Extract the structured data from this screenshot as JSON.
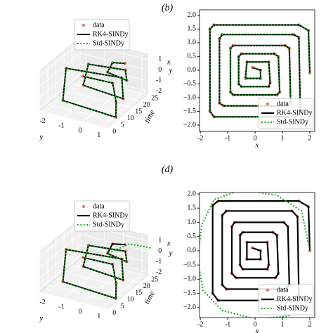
{
  "panel_labels": [
    "(b)",
    "(d)"
  ],
  "chart_data": [
    {
      "type": "line3d",
      "xlabel": "y",
      "ylabel": "time",
      "zlabel": "x",
      "xlim": [
        -2.3,
        1.3
      ],
      "ylim": [
        0,
        25
      ],
      "zlim": [
        -2.3,
        1.5
      ],
      "xticks": [
        -2,
        -1,
        0,
        1
      ],
      "yticks": [
        0,
        5,
        10,
        15,
        20,
        25
      ],
      "zticks": [
        -2,
        -1,
        0,
        1
      ],
      "legend": "upper right",
      "series": [
        {
          "name": "data",
          "color": "#e8564f",
          "linestyle": "none",
          "x": [
            0.0,
            1.5,
            1.6,
            1.5,
            -1.5,
            -1.5,
            1.3,
            1.2,
            -1.1,
            -1.0,
            0.8,
            0.7,
            -0.5,
            -0.4,
            0.1
          ],
          "y": [
            0,
            1,
            2,
            3,
            5,
            7,
            9,
            11,
            13,
            15,
            17,
            19,
            21,
            23,
            25
          ],
          "values": [
            2.0,
            1.9,
            0,
            -1.6,
            -1.6,
            1.2,
            1.3,
            -1.0,
            -1.0,
            0.8,
            0.8,
            -0.5,
            -0.5,
            0.2,
            0.1
          ]
        },
        {
          "name": "RK4-SINDy",
          "color": "#000000",
          "linestyle": "solid",
          "x": [
            0.0,
            1.5,
            1.6,
            1.5,
            -1.5,
            -1.5,
            1.3,
            1.2,
            -1.1,
            -1.0,
            0.8,
            0.7,
            -0.5,
            -0.4,
            0.1
          ],
          "y": [
            0,
            1,
            2,
            3,
            5,
            7,
            9,
            11,
            13,
            15,
            17,
            19,
            21,
            23,
            25
          ],
          "values": [
            2.0,
            1.9,
            0,
            -1.6,
            -1.6,
            1.2,
            1.3,
            -1.0,
            -1.0,
            0.8,
            0.8,
            -0.5,
            -0.5,
            0.2,
            0.1
          ]
        },
        {
          "name": "Std-SINDy",
          "color": "#12a012",
          "linestyle": "dotted",
          "x": [
            0.0,
            1.5,
            1.6,
            1.5,
            -1.5,
            -1.5,
            1.3,
            1.2,
            -1.1,
            -1.0,
            0.8,
            0.7,
            -0.5,
            -0.4,
            0.1
          ],
          "y": [
            0,
            1,
            2,
            3,
            5,
            7,
            9,
            11,
            13,
            15,
            17,
            19,
            21,
            23,
            25
          ],
          "values": [
            2.0,
            1.9,
            0,
            -1.6,
            -1.6,
            1.2,
            1.3,
            -1.0,
            -1.0,
            0.8,
            0.8,
            -0.5,
            -0.5,
            0.2,
            0.1
          ]
        }
      ]
    },
    {
      "type": "line",
      "xlabel": "x",
      "ylabel": "y",
      "xlim": [
        -2.03,
        2.18
      ],
      "ylim": [
        -2.23,
        2.2
      ],
      "xticks": [
        -2,
        -1,
        0,
        1,
        2
      ],
      "yticks": [
        {
          "value": 2,
          "label": "2.0"
        },
        {
          "value": 1.5,
          "label": "1.5"
        },
        {
          "value": 1,
          "label": "1.0"
        },
        {
          "value": 0.5,
          "label": "0.5"
        },
        {
          "value": 0,
          "label": "0.0"
        },
        {
          "value": -0.5,
          "label": "−0.5"
        },
        {
          "value": -1,
          "label": "−1.0"
        },
        {
          "value": -1.5,
          "label": "−1.5"
        },
        {
          "value": -2,
          "label": "−2.0"
        }
      ],
      "legend": "lower right",
      "series": [
        {
          "name": "data",
          "color": "#e8564f",
          "linestyle": "none",
          "x": [
            2.0,
            1.95,
            1.6,
            -1.5,
            -1.65,
            -1.65,
            -1.5,
            1.5,
            1.65,
            1.6,
            1.4,
            -1.2,
            -1.3,
            -1.3,
            -1.15,
            1.2,
            1.3,
            1.25,
            1.1,
            -0.8,
            -0.9,
            -0.9,
            -0.8,
            0.8,
            0.9,
            0.85,
            0.7,
            -0.5,
            -0.6,
            -0.6,
            -0.5,
            0.5,
            0.55,
            0.5,
            -0.3,
            -0.35,
            0.2,
            0.2,
            -0.1
          ],
          "values": [
            -0.1,
            1.45,
            1.65,
            1.65,
            1.5,
            -1.5,
            -1.7,
            -1.7,
            -1.5,
            1.2,
            1.3,
            1.3,
            1.15,
            -1.2,
            -1.3,
            -1.3,
            -1.15,
            0.8,
            0.9,
            0.9,
            0.8,
            -0.8,
            -0.9,
            -0.9,
            -0.8,
            0.5,
            0.6,
            0.6,
            0.5,
            -0.5,
            -0.6,
            -0.6,
            -0.45,
            0.3,
            0.3,
            -0.3,
            -0.3,
            0,
            0.1
          ]
        },
        {
          "name": "RK4-SINDy",
          "color": "#000000",
          "linestyle": "solid",
          "x": [
            2.0,
            1.95,
            1.6,
            -1.5,
            -1.65,
            -1.65,
            -1.5,
            1.5,
            1.65,
            1.6,
            1.4,
            -1.2,
            -1.3,
            -1.3,
            -1.15,
            1.2,
            1.3,
            1.25,
            1.1,
            -0.8,
            -0.9,
            -0.9,
            -0.8,
            0.8,
            0.9,
            0.85,
            0.7,
            -0.5,
            -0.6,
            -0.6,
            -0.5,
            0.5,
            0.55,
            0.5,
            -0.3,
            -0.35,
            0.2,
            0.2,
            -0.1
          ],
          "values": [
            -0.1,
            1.45,
            1.65,
            1.65,
            1.5,
            -1.5,
            -1.7,
            -1.7,
            -1.5,
            1.2,
            1.3,
            1.3,
            1.15,
            -1.2,
            -1.3,
            -1.3,
            -1.15,
            0.8,
            0.9,
            0.9,
            0.8,
            -0.8,
            -0.9,
            -0.9,
            -0.8,
            0.5,
            0.6,
            0.6,
            0.5,
            -0.5,
            -0.6,
            -0.6,
            -0.45,
            0.3,
            0.3,
            -0.3,
            -0.3,
            0,
            0.1
          ]
        },
        {
          "name": "Std-SINDy",
          "color": "#12a012",
          "linestyle": "dotted",
          "x": [
            2.0,
            1.95,
            1.6,
            -1.5,
            -1.65,
            -1.65,
            -1.5,
            1.5,
            1.65,
            1.6,
            1.4,
            -1.2,
            -1.3,
            -1.3,
            -1.15,
            1.2,
            1.3,
            1.25,
            1.1,
            -0.8,
            -0.9,
            -0.9,
            -0.8,
            0.8,
            0.9,
            0.85,
            0.7,
            -0.5,
            -0.6,
            -0.6,
            -0.5,
            0.5,
            0.55,
            0.5,
            -0.3,
            -0.35,
            0.2,
            0.2,
            -0.1
          ],
          "values": [
            -0.1,
            1.45,
            1.65,
            1.65,
            1.5,
            -1.5,
            -1.7,
            -1.7,
            -1.5,
            1.2,
            1.3,
            1.3,
            1.15,
            -1.2,
            -1.3,
            -1.3,
            -1.15,
            0.8,
            0.9,
            0.9,
            0.8,
            -0.8,
            -0.9,
            -0.9,
            -0.8,
            0.5,
            0.6,
            0.6,
            0.5,
            -0.5,
            -0.6,
            -0.6,
            -0.45,
            0.3,
            0.3,
            -0.3,
            -0.3,
            0,
            0.1
          ]
        }
      ]
    },
    {
      "type": "line3d",
      "xlabel": "y",
      "ylabel": "time",
      "zlabel": "x",
      "xlim": [
        -2.3,
        1.3
      ],
      "ylim": [
        0,
        25
      ],
      "zlim": [
        -2.3,
        1.5
      ],
      "xticks": [
        -2,
        -1,
        0,
        1
      ],
      "yticks": [
        0,
        5,
        10,
        15,
        20,
        25
      ],
      "zticks": [
        -2,
        -1,
        0,
        1
      ],
      "legend": "upper right",
      "series": [
        {
          "name": "data",
          "color": "#e8564f",
          "linestyle": "none",
          "x": [
            0.0,
            1.5,
            1.6,
            1.5,
            -1.5,
            -1.5,
            1.3,
            1.2,
            -1.1,
            -1.0,
            0.8,
            0.7,
            -0.5,
            -0.4,
            0.1
          ],
          "y": [
            0,
            1,
            2,
            3,
            5,
            7,
            9,
            11,
            13,
            15,
            17,
            19,
            21,
            23,
            25
          ],
          "values": [
            2.0,
            1.9,
            0,
            -1.6,
            -1.6,
            1.2,
            1.3,
            -1.0,
            -1.0,
            0.8,
            0.8,
            -0.5,
            -0.5,
            0.2,
            0.1
          ]
        },
        {
          "name": "RK4-SINDy",
          "color": "#000000",
          "linestyle": "solid",
          "x": [
            0.0,
            1.5,
            1.6,
            1.5,
            -1.5,
            -1.5,
            1.3,
            1.2,
            -1.1,
            -1.0,
            0.8,
            0.7,
            -0.5,
            -0.4,
            0.1
          ],
          "y": [
            0,
            1,
            2,
            3,
            5,
            7,
            9,
            11,
            13,
            15,
            17,
            19,
            21,
            23,
            25
          ],
          "values": [
            2.0,
            1.9,
            0,
            -1.6,
            -1.6,
            1.2,
            1.3,
            -1.0,
            -1.0,
            0.8,
            0.8,
            -0.5,
            -0.5,
            0.2,
            0.1
          ]
        },
        {
          "name": "Std-SINDy",
          "color": "#12a012",
          "linestyle": "dotted",
          "x": [
            0.0,
            1.5,
            1.6,
            1.5,
            -1.5,
            -1.5,
            1.3,
            1.2,
            -1.1,
            -1.0,
            0.8,
            0.7,
            -0.5,
            0.5,
            1.5
          ],
          "y": [
            0,
            1,
            2,
            3,
            5,
            7,
            9,
            11,
            13,
            15,
            17,
            19,
            21,
            23,
            25
          ],
          "values": [
            2.0,
            1.9,
            0,
            -1.6,
            -1.6,
            1.2,
            1.3,
            -1.0,
            -1.0,
            0.8,
            0.8,
            -0.5,
            -0.5,
            0.6,
            0.4
          ]
        }
      ]
    },
    {
      "type": "line",
      "xlabel": "x",
      "ylabel": "y",
      "xlim": [
        -2.03,
        2.18
      ],
      "ylim": [
        -2.35,
        2.05
      ],
      "xticks": [
        -2,
        -1,
        0,
        1,
        2
      ],
      "yticks": [
        {
          "value": 2,
          "label": "2.0"
        },
        {
          "value": 1.5,
          "label": "1.5"
        },
        {
          "value": 1,
          "label": "1.0"
        },
        {
          "value": 0.5,
          "label": "0.5"
        },
        {
          "value": 0,
          "label": "0.0"
        },
        {
          "value": -0.5,
          "label": "−0.5"
        },
        {
          "value": -1,
          "label": "−1.0"
        },
        {
          "value": -1.5,
          "label": "−1.5"
        },
        {
          "value": -2,
          "label": "−2.0"
        }
      ],
      "legend": "lower right",
      "series": [
        {
          "name": "data",
          "color": "#e8564f",
          "linestyle": "none",
          "x": [
            2.0,
            1.95,
            1.6,
            -1.35,
            -1.55,
            -1.55,
            -1.35,
            1.4,
            1.6,
            1.55,
            1.35,
            -1.05,
            -1.2,
            -1.2,
            -1.05,
            1.1,
            1.25,
            1.2,
            1.05,
            -0.75,
            -0.85,
            -0.85,
            -0.7,
            0.75,
            0.85,
            0.8,
            0.65,
            -0.45,
            -0.55,
            -0.55,
            -0.45,
            0.45,
            0.5,
            0.45,
            -0.3,
            -0.3,
            0.2,
            0.2,
            -0.1
          ],
          "values": [
            0.0,
            1.55,
            1.75,
            1.75,
            1.6,
            -1.5,
            -1.75,
            -1.75,
            -1.55,
            1.2,
            1.4,
            1.4,
            1.25,
            -1.2,
            -1.35,
            -1.35,
            -1.2,
            0.85,
            1.0,
            1.0,
            0.85,
            -0.8,
            -0.95,
            -0.95,
            -0.8,
            0.55,
            0.65,
            0.65,
            0.55,
            -0.5,
            -0.65,
            -0.65,
            -0.5,
            0.3,
            0.3,
            -0.3,
            -0.3,
            0,
            0.1
          ]
        },
        {
          "name": "RK4-SINDy",
          "color": "#000000",
          "linestyle": "solid",
          "x": [
            2.0,
            1.95,
            1.6,
            -1.35,
            -1.55,
            -1.55,
            -1.35,
            1.4,
            1.6,
            1.55,
            1.35,
            -1.05,
            -1.2,
            -1.2,
            -1.05,
            1.1,
            1.25,
            1.2,
            1.05,
            -0.75,
            -0.85,
            -0.85,
            -0.7,
            0.75,
            0.85,
            0.8,
            0.65,
            -0.45,
            -0.55,
            -0.55,
            -0.45,
            0.45,
            0.5,
            0.45,
            -0.3,
            -0.3,
            0.2,
            0.2,
            -0.1
          ],
          "values": [
            0.0,
            1.55,
            1.75,
            1.75,
            1.6,
            -1.5,
            -1.75,
            -1.75,
            -1.55,
            1.2,
            1.4,
            1.4,
            1.25,
            -1.2,
            -1.35,
            -1.35,
            -1.2,
            0.85,
            1.0,
            1.0,
            0.85,
            -0.8,
            -0.95,
            -0.95,
            -0.8,
            0.55,
            0.65,
            0.65,
            0.55,
            -0.5,
            -0.65,
            -0.65,
            -0.5,
            0.3,
            0.3,
            -0.3,
            -0.3,
            0,
            0.1
          ]
        },
        {
          "name": "Std-SINDy",
          "color": "#12a012",
          "linestyle": "dotted",
          "x": [
            2.0,
            1.7,
            0.8,
            -0.5,
            -1.5,
            -1.95,
            -2.1,
            -1.9,
            -1.2,
            0.0,
            1.2,
            1.9
          ],
          "values": [
            0.0,
            1.4,
            1.95,
            2.15,
            1.8,
            0.9,
            -0.3,
            -1.4,
            -2.1,
            -2.4,
            -2.3,
            -2.0
          ]
        }
      ]
    }
  ]
}
